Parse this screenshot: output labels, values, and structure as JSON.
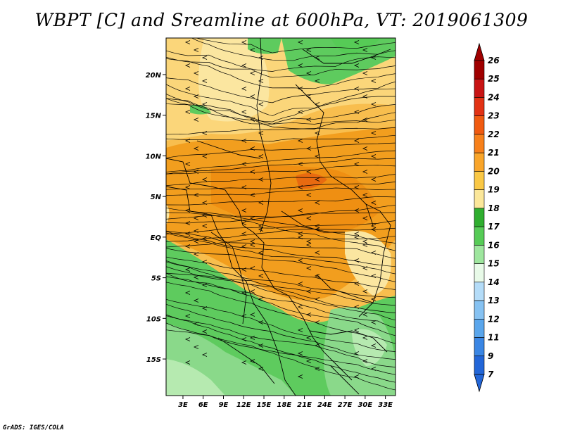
{
  "title": "WBPT [C] and Sreamline at 600hPa, VT: 2019061309",
  "footer": "GrADS: IGES/COLA",
  "map": {
    "lat_ticks": [
      {
        "label": "20N",
        "value": 20
      },
      {
        "label": "15N",
        "value": 15
      },
      {
        "label": "10N",
        "value": 10
      },
      {
        "label": "5N",
        "value": 5
      },
      {
        "label": "EQ",
        "value": 0
      },
      {
        "label": "5S",
        "value": -5
      },
      {
        "label": "10S",
        "value": -10
      },
      {
        "label": "15S",
        "value": -15
      }
    ],
    "lon_ticks": [
      {
        "label": "3E",
        "value": 3
      },
      {
        "label": "6E",
        "value": 6
      },
      {
        "label": "9E",
        "value": 9
      },
      {
        "label": "12E",
        "value": 12
      },
      {
        "label": "15E",
        "value": 15
      },
      {
        "label": "18E",
        "value": 18
      },
      {
        "label": "21E",
        "value": 21
      },
      {
        "label": "24E",
        "value": 24
      },
      {
        "label": "27E",
        "value": 27
      },
      {
        "label": "30E",
        "value": 30
      },
      {
        "label": "33E",
        "value": 33
      }
    ],
    "lat_range": [
      -19.5,
      24.5
    ],
    "lon_range": [
      0.5,
      34.5
    ]
  },
  "colorbar": {
    "levels": [
      "26",
      "25",
      "24",
      "23",
      "22",
      "21",
      "20",
      "19",
      "18",
      "17",
      "16",
      "15",
      "14",
      "13",
      "12",
      "11",
      "9",
      "7"
    ],
    "colors": [
      "#a00000",
      "#c81414",
      "#e23214",
      "#f05a10",
      "#f7801a",
      "#f9a52a",
      "#fac845",
      "#fbe79a",
      "#2fae2f",
      "#56cb56",
      "#9ee69e",
      "#e8fae8",
      "#b4dcf8",
      "#86c2f2",
      "#5aa6ec",
      "#3a86e4",
      "#2266d8"
    ]
  },
  "colors": {
    "orange": "#f29e1e",
    "light_orange": "#f8be4e",
    "yellow": "#fbe6a0",
    "green": "#5ecb5e",
    "light_green": "#a9e6a0",
    "dark_green": "#2fae2f"
  }
}
